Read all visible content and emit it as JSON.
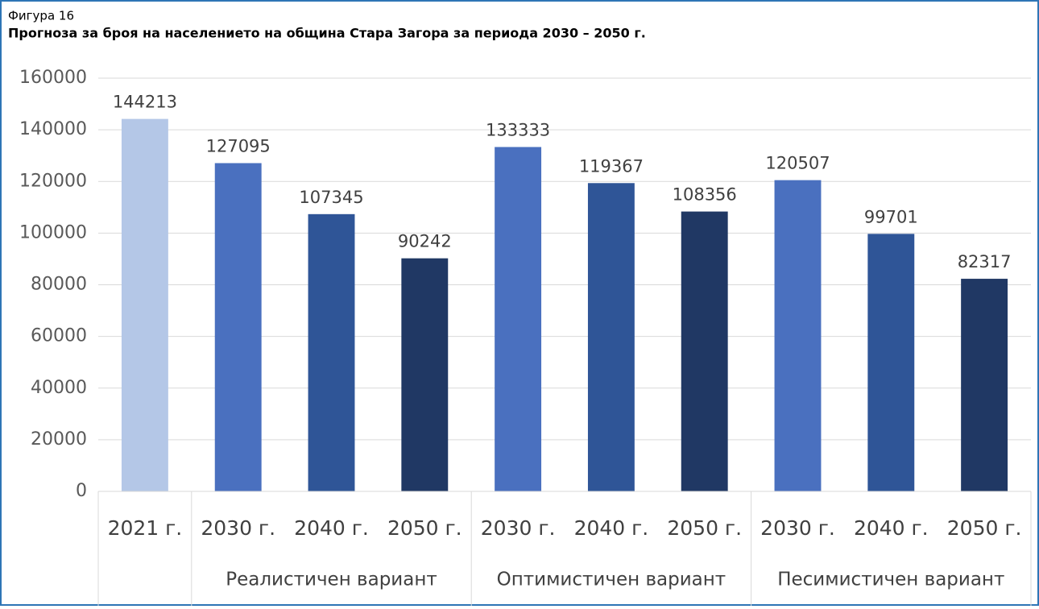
{
  "chart_data": {
    "type": "bar",
    "label": "Фигура 16",
    "title": "Прогноза за броя на населението на община Стара Загора за периода 2030 – 2050 г.",
    "groups": [
      {
        "name": null,
        "categories": [
          "2021 г."
        ],
        "values": [
          144213
        ],
        "colors": [
          "#b4c7e7"
        ]
      },
      {
        "name": "Реалистичен вариант",
        "categories": [
          "2030 г.",
          "2040 г.",
          "2050 г."
        ],
        "values": [
          127095,
          107345,
          90242
        ],
        "colors": [
          "#4a70bf",
          "#2f5597",
          "#203864"
        ]
      },
      {
        "name": "Оптимистичен вариант",
        "categories": [
          "2030 г.",
          "2040 г.",
          "2050 г."
        ],
        "values": [
          133333,
          119367,
          108356
        ],
        "colors": [
          "#4a70bf",
          "#2f5597",
          "#203864"
        ]
      },
      {
        "name": "Песимистичен вариант",
        "categories": [
          "2030 г.",
          "2040 г.",
          "2050 г."
        ],
        "values": [
          120507,
          99701,
          82317
        ],
        "colors": [
          "#4a70bf",
          "#2f5597",
          "#203864"
        ]
      }
    ],
    "ylim": [
      0,
      160000
    ],
    "yticks": [
      0,
      20000,
      40000,
      60000,
      80000,
      100000,
      120000,
      140000,
      160000
    ],
    "grid": true
  }
}
